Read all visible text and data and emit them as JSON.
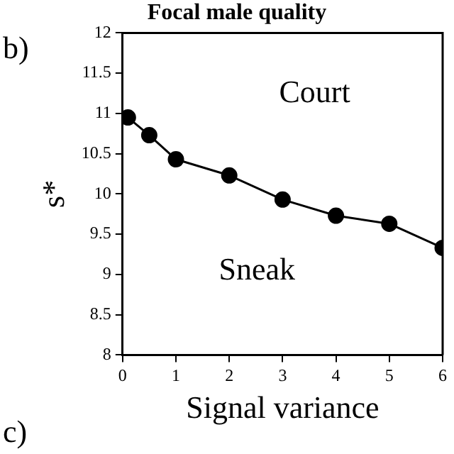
{
  "chart_data": {
    "type": "line",
    "title": "Focal male quality",
    "xlabel": "Signal variance",
    "ylabel": "s*",
    "x": [
      0.1,
      0.5,
      1,
      2,
      3,
      4,
      5,
      6
    ],
    "series": [
      {
        "color": "#000000",
        "values": [
          10.95,
          10.73,
          10.43,
          10.23,
          9.93,
          9.73,
          9.63,
          9.33
        ]
      }
    ],
    "xlim": [
      0,
      6
    ],
    "xticks": [
      0,
      1,
      2,
      3,
      4,
      5,
      6
    ],
    "ylim": [
      8,
      12
    ],
    "yticks": [
      8,
      8.5,
      9,
      9.5,
      10,
      10.5,
      11,
      11.5,
      12
    ],
    "grid": false,
    "legend": false,
    "marker": "circle",
    "line_style": "solid",
    "annotations": [
      "b)",
      "c)",
      "Court",
      "Sneak"
    ]
  }
}
